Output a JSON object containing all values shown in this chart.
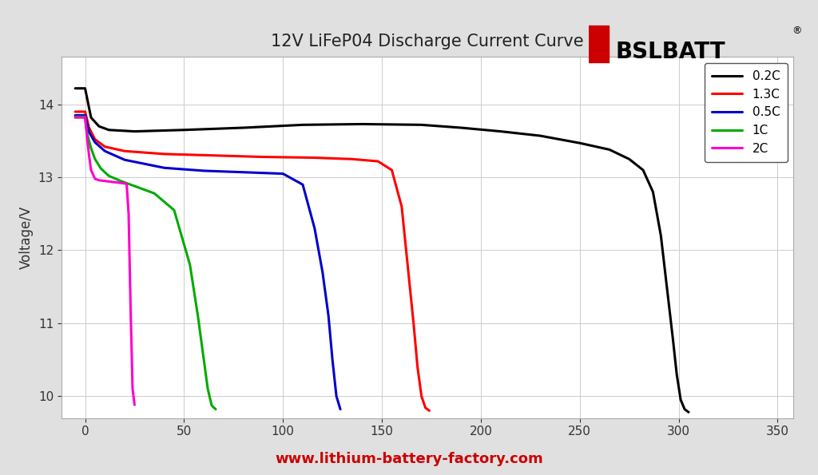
{
  "title": "12V LiFeP04 Discharge Current Curve",
  "xlabel_bottom": "www.lithium-battery-factory.com",
  "ylabel": "Voltage/V",
  "background_color": "#e0e0e0",
  "plot_bg_color": "#ffffff",
  "xlim": [
    -12,
    358
  ],
  "ylim": [
    9.7,
    14.65
  ],
  "xticks": [
    0,
    50,
    100,
    150,
    200,
    250,
    300,
    350
  ],
  "yticks": [
    10,
    11,
    12,
    13,
    14
  ],
  "grid_color": "#cccccc",
  "title_fontsize": 15,
  "series": [
    {
      "label": "0.2C",
      "color": "#000000",
      "lw": 2.2,
      "x": [
        -5,
        0,
        3,
        7,
        12,
        25,
        50,
        80,
        110,
        140,
        170,
        190,
        210,
        230,
        250,
        265,
        275,
        282,
        287,
        291,
        294,
        297,
        299,
        301,
        303,
        305
      ],
      "y": [
        14.22,
        14.22,
        13.82,
        13.7,
        13.65,
        13.63,
        13.65,
        13.68,
        13.72,
        13.73,
        13.72,
        13.68,
        13.63,
        13.57,
        13.47,
        13.38,
        13.25,
        13.1,
        12.8,
        12.2,
        11.5,
        10.8,
        10.3,
        9.95,
        9.82,
        9.78
      ]
    },
    {
      "label": "1.3C",
      "color": "#ff0000",
      "lw": 2.2,
      "x": [
        -5,
        0,
        2,
        5,
        10,
        20,
        40,
        65,
        90,
        115,
        135,
        148,
        155,
        160,
        163,
        166,
        168,
        170,
        172,
        174
      ],
      "y": [
        13.9,
        13.9,
        13.68,
        13.52,
        13.42,
        13.36,
        13.32,
        13.3,
        13.28,
        13.27,
        13.25,
        13.22,
        13.1,
        12.6,
        11.8,
        11.0,
        10.4,
        10.0,
        9.84,
        9.8
      ]
    },
    {
      "label": "0.5C",
      "color": "#0000cc",
      "lw": 2.2,
      "x": [
        -5,
        0,
        2,
        5,
        10,
        20,
        40,
        60,
        80,
        100,
        110,
        116,
        120,
        123,
        125,
        127,
        129
      ],
      "y": [
        13.85,
        13.85,
        13.62,
        13.48,
        13.36,
        13.24,
        13.13,
        13.09,
        13.07,
        13.05,
        12.9,
        12.3,
        11.7,
        11.1,
        10.5,
        10.0,
        9.82
      ]
    },
    {
      "label": "1C",
      "color": "#00aa00",
      "lw": 2.2,
      "x": [
        -5,
        0,
        1,
        3,
        5,
        8,
        12,
        18,
        25,
        35,
        45,
        53,
        57,
        60,
        62,
        64,
        66
      ],
      "y": [
        13.83,
        13.83,
        13.6,
        13.4,
        13.25,
        13.12,
        13.02,
        12.95,
        12.88,
        12.78,
        12.55,
        11.8,
        11.1,
        10.5,
        10.1,
        9.87,
        9.82
      ]
    },
    {
      "label": "2C",
      "color": "#ff00cc",
      "lw": 2.2,
      "x": [
        -5,
        0,
        1,
        2,
        3,
        5,
        7,
        10,
        13,
        16,
        19,
        21,
        22,
        23,
        24,
        25
      ],
      "y": [
        13.82,
        13.82,
        13.55,
        13.3,
        13.1,
        12.98,
        12.96,
        12.95,
        12.94,
        12.93,
        12.92,
        12.91,
        12.5,
        11.2,
        10.1,
        9.88
      ]
    }
  ]
}
